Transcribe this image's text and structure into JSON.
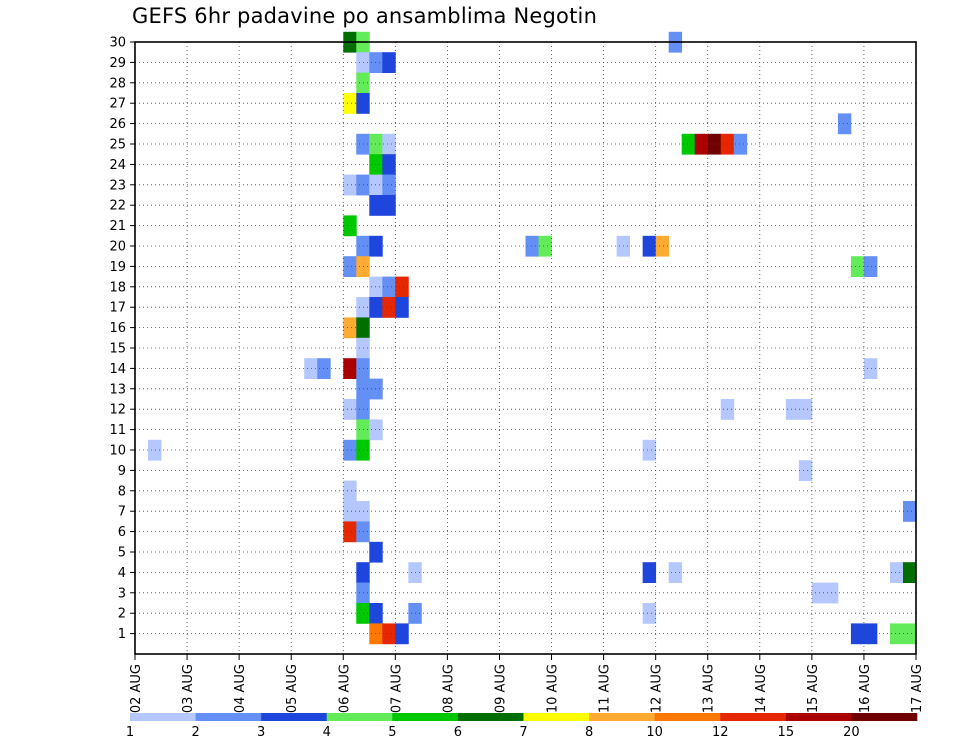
{
  "chart_data": {
    "type": "heatmap",
    "title": "GEFS 6hr padavine po ansamblima Negotin",
    "xlabel": "",
    "ylabel": "",
    "x_tick_labels": [
      "02 AUG",
      "03 AUG",
      "04 AUG",
      "05 AUG",
      "06 AUG",
      "07 AUG",
      "08 AUG",
      "09 AUG",
      "10 AUG",
      "11 AUG",
      "12 AUG",
      "13 AUG",
      "14 AUG",
      "15 AUG",
      "16 AUG",
      "17 AUG"
    ],
    "xlim_days": [
      0,
      15
    ],
    "steps_per_day": 4,
    "y_tick_labels": [
      "1",
      "2",
      "3",
      "4",
      "5",
      "6",
      "7",
      "8",
      "9",
      "10",
      "11",
      "12",
      "13",
      "14",
      "15",
      "16",
      "17",
      "18",
      "19",
      "20",
      "21",
      "22",
      "23",
      "24",
      "25",
      "26",
      "27",
      "28",
      "29",
      "30"
    ],
    "ylim_members": [
      0,
      30
    ],
    "grid": true,
    "legend_placement": "bottom",
    "colorbar": {
      "labels": [
        "1",
        "2",
        "3",
        "4",
        "5",
        "6",
        "7",
        "8",
        "10",
        "12",
        "15",
        "20"
      ],
      "colors": [
        "#b4c8ff",
        "#6490f5",
        "#1e46dc",
        "#64eb5a",
        "#00c800",
        "#006e00",
        "#ffff00",
        "#ffaa32",
        "#ff7800",
        "#e62800",
        "#aa0000",
        "#6e0000"
      ]
    },
    "cells": [
      {
        "member": 30,
        "step": 16,
        "class": 5
      },
      {
        "member": 30,
        "step": 17,
        "class": 3
      },
      {
        "member": 30,
        "step": 41,
        "class": 1
      },
      {
        "member": 29,
        "step": 17,
        "class": 0
      },
      {
        "member": 29,
        "step": 18,
        "class": 1
      },
      {
        "member": 29,
        "step": 19,
        "class": 2
      },
      {
        "member": 28,
        "step": 17,
        "class": 3
      },
      {
        "member": 27,
        "step": 16,
        "class": 6
      },
      {
        "member": 27,
        "step": 17,
        "class": 2
      },
      {
        "member": 26,
        "step": 54,
        "class": 1
      },
      {
        "member": 25,
        "step": 17,
        "class": 1
      },
      {
        "member": 25,
        "step": 18,
        "class": 3
      },
      {
        "member": 25,
        "step": 19,
        "class": 0
      },
      {
        "member": 25,
        "step": 42,
        "class": 4
      },
      {
        "member": 25,
        "step": 43,
        "class": 10
      },
      {
        "member": 25,
        "step": 44,
        "class": 11
      },
      {
        "member": 25,
        "step": 45,
        "class": 9
      },
      {
        "member": 25,
        "step": 46,
        "class": 1
      },
      {
        "member": 24,
        "step": 18,
        "class": 4
      },
      {
        "member": 24,
        "step": 19,
        "class": 2
      },
      {
        "member": 23,
        "step": 16,
        "class": 0
      },
      {
        "member": 23,
        "step": 17,
        "class": 1
      },
      {
        "member": 23,
        "step": 18,
        "class": 0
      },
      {
        "member": 23,
        "step": 19,
        "class": 1
      },
      {
        "member": 22,
        "step": 18,
        "class": 2
      },
      {
        "member": 22,
        "step": 19,
        "class": 2
      },
      {
        "member": 21,
        "step": 16,
        "class": 4
      },
      {
        "member": 20,
        "step": 17,
        "class": 1
      },
      {
        "member": 20,
        "step": 18,
        "class": 2
      },
      {
        "member": 20,
        "step": 30,
        "class": 1
      },
      {
        "member": 20,
        "step": 31,
        "class": 3
      },
      {
        "member": 20,
        "step": 37,
        "class": 0
      },
      {
        "member": 20,
        "step": 39,
        "class": 2
      },
      {
        "member": 20,
        "step": 40,
        "class": 7
      },
      {
        "member": 19,
        "step": 16,
        "class": 1
      },
      {
        "member": 19,
        "step": 17,
        "class": 7
      },
      {
        "member": 19,
        "step": 55,
        "class": 3
      },
      {
        "member": 19,
        "step": 56,
        "class": 1
      },
      {
        "member": 18,
        "step": 18,
        "class": 0
      },
      {
        "member": 18,
        "step": 19,
        "class": 1
      },
      {
        "member": 18,
        "step": 20,
        "class": 9
      },
      {
        "member": 17,
        "step": 17,
        "class": 0
      },
      {
        "member": 17,
        "step": 18,
        "class": 2
      },
      {
        "member": 17,
        "step": 19,
        "class": 9
      },
      {
        "member": 17,
        "step": 20,
        "class": 2
      },
      {
        "member": 16,
        "step": 16,
        "class": 7
      },
      {
        "member": 16,
        "step": 17,
        "class": 5
      },
      {
        "member": 15,
        "step": 17,
        "class": 0
      },
      {
        "member": 14,
        "step": 13,
        "class": 0
      },
      {
        "member": 14,
        "step": 14,
        "class": 1
      },
      {
        "member": 14,
        "step": 16,
        "class": 10
      },
      {
        "member": 14,
        "step": 17,
        "class": 1
      },
      {
        "member": 14,
        "step": 56,
        "class": 0
      },
      {
        "member": 13,
        "step": 17,
        "class": 1
      },
      {
        "member": 13,
        "step": 18,
        "class": 1
      },
      {
        "member": 12,
        "step": 16,
        "class": 0
      },
      {
        "member": 12,
        "step": 17,
        "class": 1
      },
      {
        "member": 12,
        "step": 45,
        "class": 0
      },
      {
        "member": 12,
        "step": 50,
        "class": 0
      },
      {
        "member": 12,
        "step": 51,
        "class": 0
      },
      {
        "member": 11,
        "step": 17,
        "class": 3
      },
      {
        "member": 11,
        "step": 18,
        "class": 0
      },
      {
        "member": 10,
        "step": 1,
        "class": 0
      },
      {
        "member": 10,
        "step": 16,
        "class": 1
      },
      {
        "member": 10,
        "step": 17,
        "class": 4
      },
      {
        "member": 10,
        "step": 39,
        "class": 0
      },
      {
        "member": 9,
        "step": 51,
        "class": 0
      },
      {
        "member": 8,
        "step": 16,
        "class": 0
      },
      {
        "member": 7,
        "step": 16,
        "class": 0
      },
      {
        "member": 7,
        "step": 17,
        "class": 0
      },
      {
        "member": 7,
        "step": 59,
        "class": 1
      },
      {
        "member": 6,
        "step": 16,
        "class": 9
      },
      {
        "member": 6,
        "step": 17,
        "class": 1
      },
      {
        "member": 5,
        "step": 18,
        "class": 2
      },
      {
        "member": 4,
        "step": 17,
        "class": 2
      },
      {
        "member": 4,
        "step": 21,
        "class": 0
      },
      {
        "member": 4,
        "step": 39,
        "class": 2
      },
      {
        "member": 4,
        "step": 41,
        "class": 0
      },
      {
        "member": 4,
        "step": 58,
        "class": 0
      },
      {
        "member": 4,
        "step": 59,
        "class": 5
      },
      {
        "member": 3,
        "step": 17,
        "class": 1
      },
      {
        "member": 3,
        "step": 52,
        "class": 0
      },
      {
        "member": 3,
        "step": 53,
        "class": 0
      },
      {
        "member": 2,
        "step": 17,
        "class": 4
      },
      {
        "member": 2,
        "step": 18,
        "class": 2
      },
      {
        "member": 2,
        "step": 21,
        "class": 1
      },
      {
        "member": 2,
        "step": 39,
        "class": 0
      },
      {
        "member": 1,
        "step": 18,
        "class": 8
      },
      {
        "member": 1,
        "step": 19,
        "class": 9
      },
      {
        "member": 1,
        "step": 20,
        "class": 2
      },
      {
        "member": 1,
        "step": 55,
        "class": 2
      },
      {
        "member": 1,
        "step": 56,
        "class": 2
      },
      {
        "member": 1,
        "step": 58,
        "class": 3
      },
      {
        "member": 1,
        "step": 59,
        "class": 3
      }
    ]
  }
}
